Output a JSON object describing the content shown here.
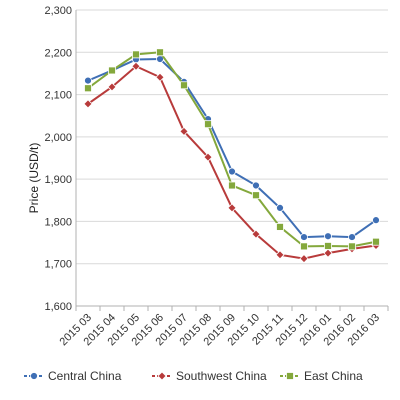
{
  "chart_data": {
    "type": "line",
    "ylabel": "Price (USD/t)",
    "ylim": [
      1600,
      2300
    ],
    "y_ticks": [
      "1,600",
      "1,700",
      "1,800",
      "1,900",
      "2,000",
      "2,100",
      "2,200",
      "2,300"
    ],
    "categories": [
      "2015 03",
      "2015 04",
      "2015 05",
      "2015 06",
      "2015 07",
      "2015 08",
      "2015 09",
      "2015 10",
      "2015 11",
      "2015 12",
      "2016 01",
      "2016 02",
      "2016 03"
    ],
    "grid": "horizontal",
    "legend_position": "bottom",
    "series": [
      {
        "name": "Central China",
        "color": "#3f6fb5",
        "marker": "circle",
        "values": [
          2133,
          2157,
          2183,
          2184,
          2130,
          2042,
          1918,
          1885,
          1832,
          1763,
          1765,
          1763,
          1803
        ]
      },
      {
        "name": "Southwest China",
        "color": "#b83b3b",
        "marker": "diamond",
        "values": [
          2078,
          2118,
          2167,
          2141,
          2013,
          1952,
          1832,
          1770,
          1721,
          1712,
          1725,
          1735,
          1743
        ]
      },
      {
        "name": "East China",
        "color": "#84a83c",
        "marker": "square",
        "values": [
          2115,
          2157,
          2195,
          2200,
          2122,
          2030,
          1885,
          1862,
          1787,
          1741,
          1742,
          1741,
          1752
        ]
      }
    ]
  }
}
